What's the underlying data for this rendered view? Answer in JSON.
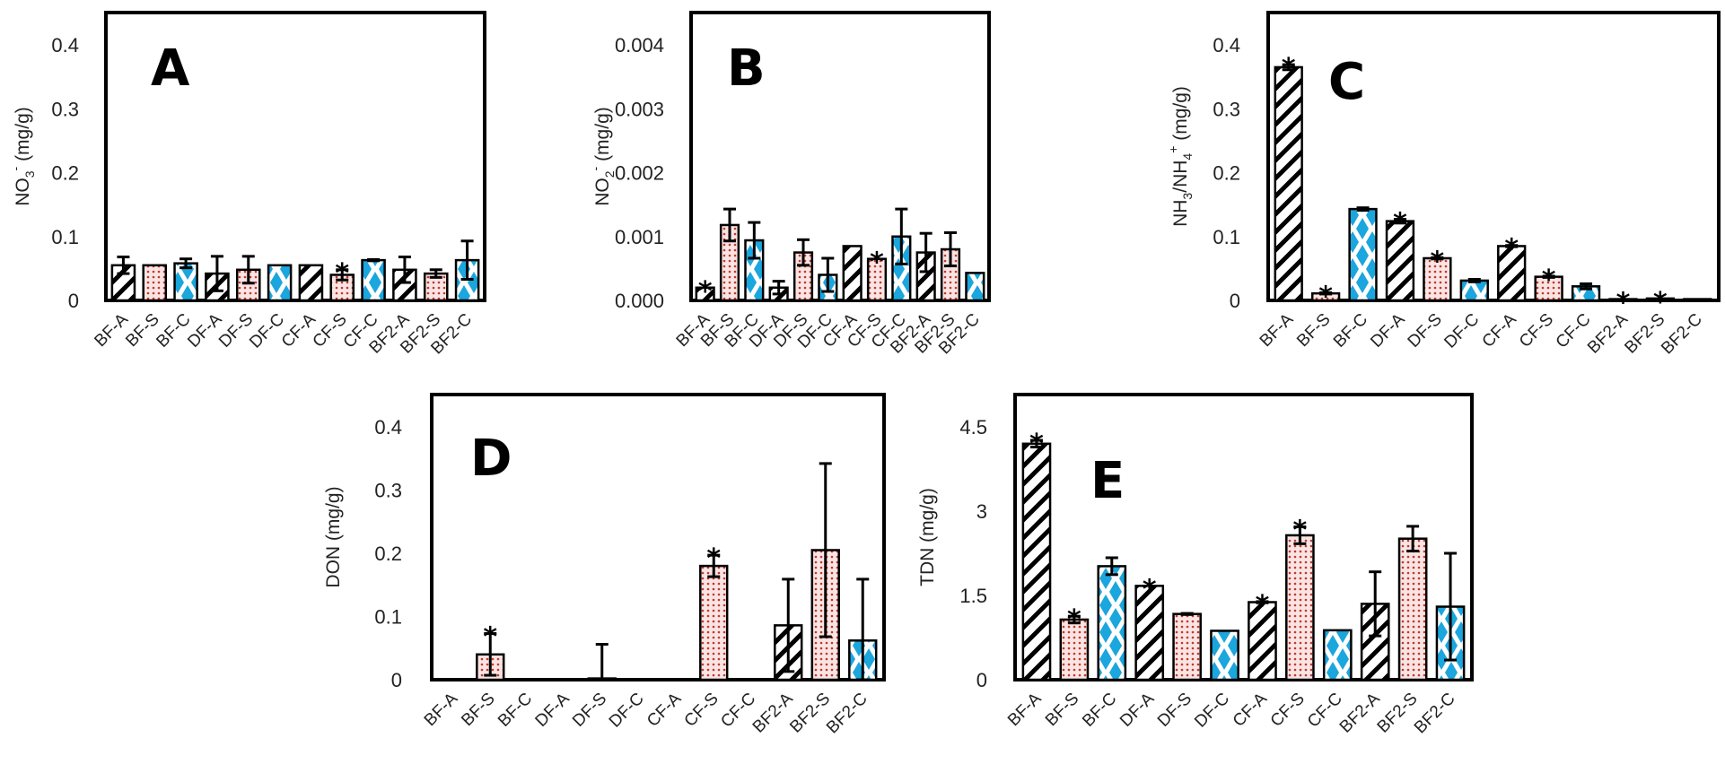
{
  "figure": {
    "patterns": {
      "A": {
        "name": "hatched",
        "stroke": "#000000"
      },
      "S": {
        "name": "dotted",
        "color": "#c0392b",
        "background": "#f7dede"
      },
      "C": {
        "name": "diamond",
        "color": "#1ba6dd"
      }
    }
  },
  "chart_data": [
    {
      "panel": "A",
      "type": "bar",
      "title": "",
      "panel_label": "A",
      "ylabel": "NO3- (mg/g)",
      "ylabel_parts": {
        "main": "NO",
        "sub": "3",
        "sup": "-",
        "unit": " (mg/g)"
      },
      "ylim": [
        0,
        0.44
      ],
      "yticks": [
        0,
        0.1,
        0.2,
        0.3,
        0.4
      ],
      "ytick_labels": [
        "0",
        "0.1",
        "0.2",
        "0.3",
        "0.4"
      ],
      "categories": [
        "BF-A",
        "BF-S",
        "BF-C",
        "DF-A",
        "DF-S",
        "DF-C",
        "CF-A",
        "CF-S",
        "CF-C",
        "BF2-A",
        "BF2-S",
        "BF2-C"
      ],
      "values": [
        0.055,
        0.055,
        0.058,
        0.042,
        0.048,
        0.055,
        0.055,
        0.04,
        0.063,
        0.048,
        0.042,
        0.063
      ],
      "errors": [
        0.013,
        0,
        0.007,
        0.027,
        0.021,
        0,
        0,
        0.008,
        0.001,
        0.02,
        0.006,
        0.03
      ],
      "significant": [
        false,
        false,
        false,
        false,
        false,
        false,
        false,
        true,
        false,
        false,
        false,
        false
      ],
      "grid": false
    },
    {
      "panel": "B",
      "type": "bar",
      "title": "",
      "panel_label": "B",
      "ylabel": "NO2- (mg/g)",
      "ylabel_parts": {
        "main": "NO",
        "sub": "2",
        "sup": "-",
        "unit": " (mg/g)"
      },
      "ylim": [
        0,
        0.0044
      ],
      "yticks": [
        0,
        0.001,
        0.002,
        0.003,
        0.004
      ],
      "ytick_labels": [
        "0.000",
        "0.001",
        "0.002",
        "0.003",
        "0.004"
      ],
      "categories": [
        "BF-A",
        "BF-S",
        "BF-C",
        "DF-A",
        "DF-S",
        "DF-C",
        "CF-A",
        "CF-S",
        "CF-C",
        "BF2-A",
        "BF2-S",
        "BF2-C"
      ],
      "values": [
        0.0002,
        0.00118,
        0.00094,
        0.0002,
        0.00075,
        0.0004,
        0.00085,
        0.00065,
        0.001,
        0.00075,
        0.0008,
        0.00043
      ],
      "errors": [
        0,
        0.00025,
        0.00028,
        0.0001,
        0.0002,
        0.00026,
        0,
        0,
        0.00043,
        0.0003,
        0.00026,
        0
      ],
      "significant": [
        true,
        false,
        false,
        false,
        false,
        false,
        false,
        true,
        false,
        false,
        false,
        false
      ],
      "grid": false
    },
    {
      "panel": "C",
      "type": "bar",
      "title": "",
      "panel_label": "C",
      "ylabel": "NH3/NH4+ (mg/g)",
      "ylabel_parts": {
        "main": "NH",
        "sub": "3",
        "mid": "/NH",
        "sub2": "4",
        "sup": "+",
        "unit": " (mg/g)"
      },
      "ylim": [
        0,
        0.44
      ],
      "yticks": [
        0,
        0.1,
        0.2,
        0.3,
        0.4
      ],
      "ytick_labels": [
        "0",
        "0.1",
        "0.2",
        "0.3",
        "0.4"
      ],
      "categories": [
        "BF-A",
        "BF-S",
        "BF-C",
        "DF-A",
        "DF-S",
        "DF-C",
        "CF-A",
        "CF-S",
        "CF-C",
        "BF2-A",
        "BF2-S",
        "BF2-C"
      ],
      "values": [
        0.365,
        0.011,
        0.143,
        0.124,
        0.066,
        0.031,
        0.085,
        0.037,
        0.022,
        0.002,
        0.003,
        0.002
      ],
      "errors": [
        0.004,
        0.001,
        0.002,
        0.003,
        0.001,
        0.002,
        0.001,
        0.001,
        0.004,
        0,
        0,
        0
      ],
      "significant": [
        true,
        true,
        false,
        true,
        true,
        false,
        true,
        true,
        false,
        true,
        true,
        false
      ],
      "grid": false
    },
    {
      "panel": "D",
      "type": "bar",
      "title": "",
      "panel_label": "D",
      "ylabel": "DON (mg/g)",
      "ylim": [
        0,
        0.44
      ],
      "yticks": [
        0,
        0.1,
        0.2,
        0.3,
        0.4
      ],
      "ytick_labels": [
        "0",
        "0.1",
        "0.2",
        "0.3",
        "0.4"
      ],
      "categories": [
        "BF-A",
        "BF-S",
        "BF-C",
        "DF-A",
        "DF-S",
        "DF-C",
        "CF-A",
        "CF-S",
        "CF-C",
        "BF2-A",
        "BF2-S",
        "BF2-C"
      ],
      "values": [
        0,
        0.04,
        0,
        0,
        0.002,
        0,
        0,
        0.18,
        0,
        0.086,
        0.205,
        0.062
      ],
      "errors": [
        0,
        0.033,
        0,
        0,
        0.054,
        0,
        0,
        0.017,
        0,
        0.073,
        0.137,
        0.097
      ],
      "significant": [
        false,
        true,
        false,
        false,
        false,
        false,
        false,
        true,
        false,
        false,
        false,
        false
      ],
      "grid": false
    },
    {
      "panel": "E",
      "type": "bar",
      "title": "",
      "panel_label": "E",
      "ylabel": "TDN (mg/g)",
      "ylim": [
        0,
        4.95
      ],
      "yticks": [
        0,
        1.5,
        3,
        4.5
      ],
      "ytick_labels": [
        "0",
        "1.5",
        "3",
        "4.5"
      ],
      "categories": [
        "BF-A",
        "BF-S",
        "BF-C",
        "DF-A",
        "DF-S",
        "DF-C",
        "CF-A",
        "CF-S",
        "CF-C",
        "BF2-A",
        "BF2-S",
        "BF2-C"
      ],
      "values": [
        4.2,
        1.07,
        2.02,
        1.67,
        1.17,
        0.87,
        1.38,
        2.57,
        0.88,
        1.35,
        2.51,
        1.3
      ],
      "errors": [
        0.06,
        0.06,
        0.15,
        0,
        0.01,
        0,
        0.01,
        0.15,
        0,
        0.57,
        0.22,
        0.95
      ],
      "significant": [
        true,
        true,
        false,
        true,
        false,
        false,
        true,
        true,
        false,
        false,
        false,
        false
      ],
      "grid": false
    }
  ]
}
